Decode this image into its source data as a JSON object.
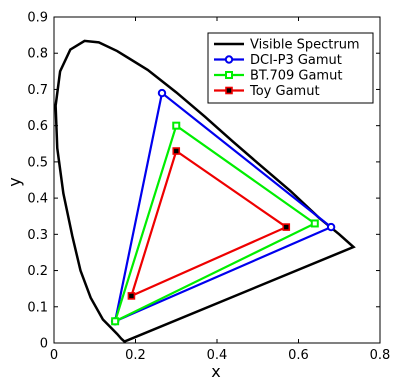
{
  "chart_data": {
    "type": "line",
    "xlabel": "x",
    "ylabel": "y",
    "xlim": [
      0,
      0.8
    ],
    "ylim": [
      0,
      0.9
    ],
    "xticks": [
      "0",
      "0.2",
      "0.4",
      "0.6",
      "0.8"
    ],
    "yticks": [
      "0",
      "0.1",
      "0.2",
      "0.3",
      "0.4",
      "0.5",
      "0.6",
      "0.7",
      "0.8",
      "0.9"
    ],
    "legend_position": "top-right",
    "series": [
      {
        "name": "Visible Spectrum",
        "color": "#000000",
        "marker": "none",
        "closed": true,
        "points": [
          [
            0.175,
            0.005
          ],
          [
            0.172,
            0.005
          ],
          [
            0.165,
            0.012
          ],
          [
            0.155,
            0.025
          ],
          [
            0.14,
            0.042
          ],
          [
            0.12,
            0.065
          ],
          [
            0.09,
            0.125
          ],
          [
            0.065,
            0.2
          ],
          [
            0.045,
            0.295
          ],
          [
            0.023,
            0.413
          ],
          [
            0.008,
            0.538
          ],
          [
            0.004,
            0.655
          ],
          [
            0.015,
            0.75
          ],
          [
            0.04,
            0.81
          ],
          [
            0.075,
            0.834
          ],
          [
            0.11,
            0.83
          ],
          [
            0.155,
            0.806
          ],
          [
            0.23,
            0.754
          ],
          [
            0.3,
            0.692
          ],
          [
            0.37,
            0.625
          ],
          [
            0.44,
            0.555
          ],
          [
            0.51,
            0.487
          ],
          [
            0.58,
            0.42
          ],
          [
            0.65,
            0.346
          ],
          [
            0.7,
            0.3
          ],
          [
            0.735,
            0.265
          ]
        ]
      },
      {
        "name": "DCI-P3 Gamut",
        "color": "#0000ee",
        "marker": "circle",
        "closed": true,
        "points": [
          [
            0.68,
            0.32
          ],
          [
            0.265,
            0.69
          ],
          [
            0.15,
            0.06
          ]
        ]
      },
      {
        "name": "BT.709 Gamut",
        "color": "#00ee00",
        "marker": "square",
        "closed": true,
        "points": [
          [
            0.64,
            0.33
          ],
          [
            0.3,
            0.6
          ],
          [
            0.15,
            0.06
          ]
        ]
      },
      {
        "name": "Toy Gamut",
        "color": "#ee0000",
        "marker": "filled-square",
        "closed": true,
        "points": [
          [
            0.57,
            0.32
          ],
          [
            0.3,
            0.53
          ],
          [
            0.19,
            0.13
          ]
        ]
      }
    ]
  }
}
